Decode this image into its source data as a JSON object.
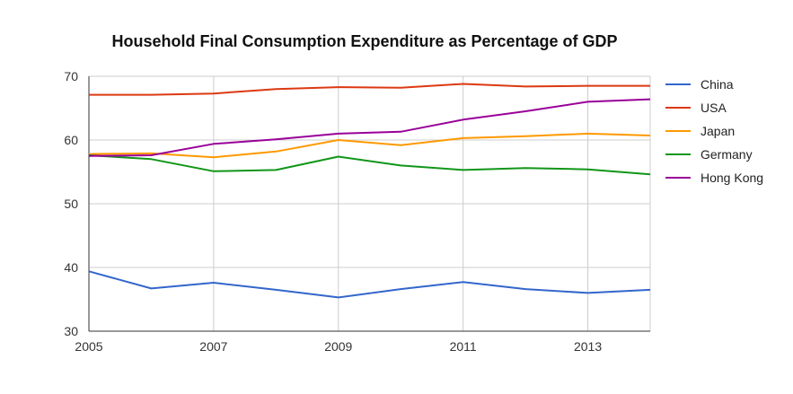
{
  "chart_data": {
    "type": "line",
    "title": "Household Final Consumption Expenditure as Percentage of GDP",
    "xlabel": "",
    "ylabel": "",
    "x": [
      2005,
      2006,
      2007,
      2008,
      2009,
      2010,
      2011,
      2012,
      2013,
      2014
    ],
    "x_ticks": [
      "2005",
      "2007",
      "2009",
      "2011",
      "2013"
    ],
    "y_ticks": [
      "30",
      "40",
      "50",
      "60",
      "70"
    ],
    "xlim": [
      2005,
      2014
    ],
    "ylim": [
      30,
      70
    ],
    "grid": true,
    "legend_position": "right",
    "series": [
      {
        "name": "China",
        "color": "#3366cc",
        "values": [
          39.4,
          36.7,
          37.6,
          36.5,
          35.3,
          36.6,
          37.7,
          36.6,
          36.0,
          36.5
        ]
      },
      {
        "name": "USA",
        "color": "#dc3912",
        "values": [
          67.1,
          67.1,
          67.3,
          68.0,
          68.3,
          68.2,
          68.8,
          68.4,
          68.5,
          68.5
        ]
      },
      {
        "name": "Japan",
        "color": "#ff9900",
        "values": [
          57.8,
          57.9,
          57.3,
          58.2,
          60.0,
          59.2,
          60.3,
          60.6,
          61.0,
          60.7
        ]
      },
      {
        "name": "Germany",
        "color": "#109618",
        "values": [
          57.6,
          57.0,
          55.1,
          55.3,
          57.4,
          56.0,
          55.3,
          55.6,
          55.4,
          54.6
        ]
      },
      {
        "name": "Hong Kong",
        "color": "#990099",
        "values": [
          57.5,
          57.6,
          59.4,
          60.1,
          61.0,
          61.3,
          63.2,
          64.5,
          66.0,
          66.4
        ]
      }
    ]
  }
}
